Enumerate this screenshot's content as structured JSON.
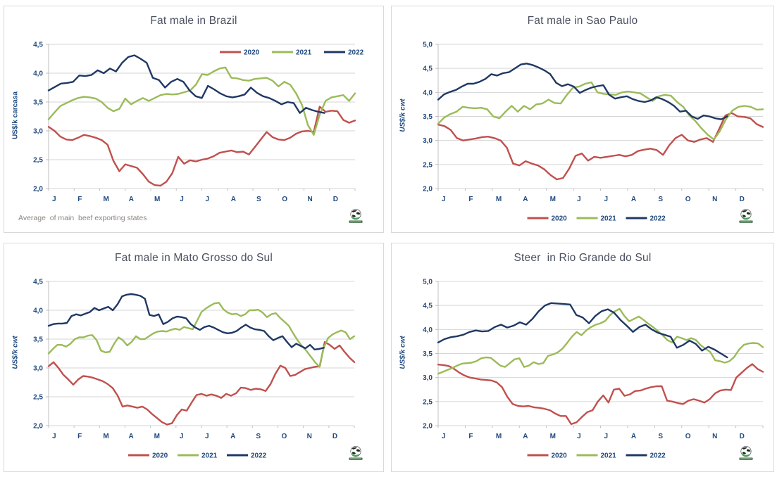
{
  "colors": {
    "red": "#c0504d",
    "green": "#9bbb59",
    "navy": "#1f3864",
    "gridline": "#d6d6d6",
    "axis_line": "#bfbfbf",
    "tick_text": "#1f497d",
    "title_text": "#4b5160",
    "footnote_text": "#8c867c",
    "panel_border": "#d9d9d9",
    "logo_green": "#3c9447",
    "logo_dark": "#1d2b20"
  },
  "months": [
    "J",
    "F",
    "M",
    "A",
    "M",
    "J",
    "J",
    "A",
    "S",
    "O",
    "N",
    "D"
  ],
  "legend_labels": [
    "2020",
    "2021",
    "2022"
  ],
  "logo_name": "world-beef-globe-logo",
  "chart_data": [
    {
      "type": "line",
      "title": "Fat male in Brazil",
      "ylabel": "US$/k carcasa",
      "ylim": [
        2.0,
        4.5
      ],
      "ytick_labels": [
        "4,5",
        "4,0",
        "3,5",
        "3,0",
        "2,5",
        "2,0"
      ],
      "x_categories": [
        "J",
        "F",
        "M",
        "A",
        "M",
        "J",
        "J",
        "A",
        "S",
        "O",
        "N",
        "D"
      ],
      "grid": "horizontal",
      "legend_position": "inset-top-right",
      "footnote": "Average  of main  beef exporting states",
      "series": [
        {
          "name": "2020",
          "color_key": "red",
          "end_fraction": 1.0,
          "values": [
            3.07,
            3.0,
            2.9,
            2.85,
            2.84,
            2.88,
            2.93,
            2.91,
            2.88,
            2.84,
            2.76,
            2.48,
            2.3,
            2.42,
            2.39,
            2.36,
            2.25,
            2.12,
            2.06,
            2.05,
            2.12,
            2.27,
            2.55,
            2.43,
            2.49,
            2.47,
            2.5,
            2.52,
            2.56,
            2.62,
            2.64,
            2.66,
            2.63,
            2.64,
            2.59,
            2.72,
            2.85,
            2.98,
            2.89,
            2.85,
            2.84,
            2.88,
            2.95,
            2.99,
            3.0,
            2.98,
            3.42,
            3.33,
            3.35,
            3.34,
            3.19,
            3.14,
            3.18
          ]
        },
        {
          "name": "2021",
          "color_key": "green",
          "end_fraction": 1.0,
          "values": [
            3.2,
            3.32,
            3.43,
            3.48,
            3.53,
            3.57,
            3.59,
            3.58,
            3.56,
            3.5,
            3.4,
            3.34,
            3.38,
            3.56,
            3.46,
            3.52,
            3.57,
            3.52,
            3.57,
            3.62,
            3.64,
            3.63,
            3.64,
            3.67,
            3.7,
            3.8,
            3.98,
            3.97,
            4.03,
            4.08,
            4.1,
            3.92,
            3.91,
            3.88,
            3.87,
            3.9,
            3.91,
            3.92,
            3.87,
            3.77,
            3.85,
            3.8,
            3.65,
            3.45,
            3.1,
            2.93,
            3.28,
            3.52,
            3.58,
            3.6,
            3.62,
            3.52,
            3.65
          ]
        },
        {
          "name": "2022",
          "color_key": "navy",
          "end_fraction": 0.9,
          "values": [
            3.7,
            3.76,
            3.82,
            3.83,
            3.85,
            3.96,
            3.95,
            3.97,
            4.05,
            4.0,
            4.08,
            4.03,
            4.18,
            4.28,
            4.31,
            4.25,
            4.18,
            3.92,
            3.88,
            3.75,
            3.85,
            3.9,
            3.85,
            3.7,
            3.6,
            3.57,
            3.78,
            3.72,
            3.65,
            3.6,
            3.58,
            3.6,
            3.63,
            3.75,
            3.66,
            3.6,
            3.57,
            3.52,
            3.46,
            3.5,
            3.48,
            3.31,
            3.4,
            3.36,
            3.33,
            3.31
          ]
        }
      ]
    },
    {
      "type": "line",
      "title": "Fat male in Sao Paulo",
      "ylabel": "US$/k cwt",
      "ylim": [
        2.0,
        5.0
      ],
      "ytick_labels": [
        "5,0",
        "4,5",
        "4,0",
        "3,5",
        "3,0",
        "2,5",
        "2,0"
      ],
      "x_categories": [
        "J",
        "F",
        "M",
        "A",
        "M",
        "J",
        "J",
        "A",
        "S",
        "O",
        "N",
        "D"
      ],
      "grid": "horizontal",
      "legend_position": "bottom",
      "series": [
        {
          "name": "2020",
          "color_key": "red",
          "end_fraction": 1.0,
          "values": [
            3.33,
            3.3,
            3.22,
            3.05,
            3.0,
            3.02,
            3.04,
            3.07,
            3.08,
            3.05,
            3.0,
            2.85,
            2.52,
            2.48,
            2.57,
            2.52,
            2.48,
            2.4,
            2.28,
            2.19,
            2.22,
            2.42,
            2.68,
            2.73,
            2.58,
            2.66,
            2.64,
            2.66,
            2.68,
            2.7,
            2.67,
            2.7,
            2.78,
            2.81,
            2.83,
            2.8,
            2.7,
            2.9,
            3.05,
            3.12,
            3.0,
            2.97,
            3.02,
            3.05,
            2.97,
            3.24,
            3.52,
            3.57,
            3.5,
            3.49,
            3.46,
            3.34,
            3.28
          ]
        },
        {
          "name": "2021",
          "color_key": "green",
          "end_fraction": 1.0,
          "values": [
            3.35,
            3.48,
            3.55,
            3.6,
            3.7,
            3.68,
            3.67,
            3.68,
            3.65,
            3.5,
            3.46,
            3.6,
            3.72,
            3.6,
            3.72,
            3.65,
            3.75,
            3.77,
            3.85,
            3.78,
            3.77,
            3.95,
            4.1,
            4.12,
            4.18,
            4.21,
            4.0,
            3.97,
            3.96,
            3.95,
            4.0,
            4.02,
            4.0,
            3.98,
            3.9,
            3.82,
            3.92,
            3.95,
            3.93,
            3.8,
            3.7,
            3.52,
            3.4,
            3.25,
            3.12,
            3.02,
            3.2,
            3.45,
            3.62,
            3.7,
            3.72,
            3.7,
            3.64,
            3.65
          ]
        },
        {
          "name": "2022",
          "color_key": "navy",
          "end_fraction": 0.89,
          "values": [
            3.85,
            3.96,
            4.01,
            4.05,
            4.12,
            4.18,
            4.18,
            4.22,
            4.28,
            4.38,
            4.35,
            4.4,
            4.42,
            4.5,
            4.58,
            4.6,
            4.57,
            4.52,
            4.46,
            4.38,
            4.2,
            4.13,
            4.17,
            4.12,
            3.99,
            4.05,
            4.1,
            4.13,
            4.15,
            3.95,
            3.87,
            3.9,
            3.92,
            3.86,
            3.82,
            3.8,
            3.83,
            3.9,
            3.86,
            3.8,
            3.72,
            3.6,
            3.62,
            3.5,
            3.45,
            3.52,
            3.5,
            3.46,
            3.44,
            3.5
          ]
        }
      ]
    },
    {
      "type": "line",
      "title": "Fat male in Mato Grosso do Sul",
      "ylabel": "US$/k cwt",
      "ylim": [
        2.0,
        4.5
      ],
      "ytick_labels": [
        "4,5",
        "4,0",
        "3,5",
        "3,0",
        "2,5",
        "2,0"
      ],
      "x_categories": [
        "J",
        "F",
        "M",
        "A",
        "M",
        "J",
        "J",
        "A",
        "S",
        "O",
        "N",
        "D"
      ],
      "grid": "horizontal",
      "legend_position": "bottom",
      "series": [
        {
          "name": "2020",
          "color_key": "red",
          "end_fraction": 1.0,
          "values": [
            3.03,
            3.1,
            3.0,
            2.88,
            2.8,
            2.71,
            2.8,
            2.86,
            2.85,
            2.83,
            2.8,
            2.77,
            2.72,
            2.65,
            2.52,
            2.33,
            2.35,
            2.33,
            2.31,
            2.33,
            2.28,
            2.2,
            2.13,
            2.06,
            2.02,
            2.04,
            2.18,
            2.28,
            2.26,
            2.4,
            2.53,
            2.55,
            2.52,
            2.54,
            2.52,
            2.48,
            2.55,
            2.52,
            2.56,
            2.66,
            2.65,
            2.62,
            2.64,
            2.63,
            2.6,
            2.72,
            2.9,
            3.04,
            3.0,
            2.86,
            2.88,
            2.93,
            2.98,
            3.0,
            3.02,
            3.03,
            3.45,
            3.4,
            3.33,
            3.39,
            3.28,
            3.18,
            3.1
          ]
        },
        {
          "name": "2021",
          "color_key": "green",
          "end_fraction": 1.0,
          "values": [
            3.25,
            3.33,
            3.4,
            3.4,
            3.37,
            3.42,
            3.5,
            3.53,
            3.53,
            3.56,
            3.57,
            3.48,
            3.3,
            3.27,
            3.28,
            3.42,
            3.53,
            3.48,
            3.39,
            3.45,
            3.55,
            3.5,
            3.5,
            3.55,
            3.6,
            3.63,
            3.64,
            3.63,
            3.66,
            3.68,
            3.66,
            3.71,
            3.69,
            3.67,
            3.82,
            3.97,
            4.03,
            4.08,
            4.12,
            4.13,
            4.02,
            3.96,
            3.93,
            3.94,
            3.9,
            3.93,
            4.0,
            4.0,
            4.01,
            3.96,
            3.88,
            3.93,
            3.95,
            3.87,
            3.8,
            3.73,
            3.6,
            3.48,
            3.38,
            3.3,
            3.2,
            3.1,
            3.02,
            3.35,
            3.52,
            3.58,
            3.62,
            3.65,
            3.62,
            3.5,
            3.55
          ]
        },
        {
          "name": "2022",
          "color_key": "navy",
          "end_fraction": 0.9,
          "values": [
            3.73,
            3.76,
            3.77,
            3.77,
            3.78,
            3.9,
            3.93,
            3.91,
            3.94,
            3.97,
            4.04,
            4.0,
            4.03,
            4.06,
            4.0,
            4.1,
            4.24,
            4.27,
            4.28,
            4.27,
            4.25,
            4.2,
            3.92,
            3.9,
            3.93,
            3.76,
            3.8,
            3.86,
            3.89,
            3.88,
            3.86,
            3.76,
            3.7,
            3.66,
            3.71,
            3.73,
            3.7,
            3.66,
            3.62,
            3.6,
            3.61,
            3.64,
            3.7,
            3.75,
            3.7,
            3.67,
            3.66,
            3.64,
            3.55,
            3.48,
            3.52,
            3.55,
            3.45,
            3.36,
            3.42,
            3.38,
            3.34,
            3.4,
            3.32,
            3.33,
            3.35
          ]
        }
      ]
    },
    {
      "type": "line",
      "title": "Steer  in Rio Grande do Sul",
      "ylabel": "US$/k cwt",
      "ylim": [
        2.0,
        5.0
      ],
      "ytick_labels": [
        "5,0",
        "4,5",
        "4,0",
        "3,5",
        "3,0",
        "2,5",
        "2,0"
      ],
      "x_categories": [
        "J",
        "F",
        "M",
        "A",
        "M",
        "J",
        "J",
        "A",
        "S",
        "O",
        "N",
        "D"
      ],
      "grid": "horizontal",
      "legend_position": "bottom",
      "series": [
        {
          "name": "2020",
          "color_key": "red",
          "end_fraction": 1.0,
          "values": [
            3.27,
            3.26,
            3.24,
            3.18,
            3.1,
            3.04,
            3.0,
            2.98,
            2.96,
            2.95,
            2.94,
            2.9,
            2.8,
            2.6,
            2.45,
            2.41,
            2.4,
            2.41,
            2.38,
            2.37,
            2.35,
            2.32,
            2.25,
            2.2,
            2.2,
            2.03,
            2.07,
            2.18,
            2.28,
            2.32,
            2.5,
            2.63,
            2.48,
            2.75,
            2.77,
            2.62,
            2.65,
            2.72,
            2.73,
            2.77,
            2.8,
            2.82,
            2.82,
            2.52,
            2.5,
            2.47,
            2.45,
            2.52,
            2.55,
            2.52,
            2.48,
            2.55,
            2.67,
            2.73,
            2.75,
            2.74,
            3.0,
            3.1,
            3.2,
            3.28,
            3.18,
            3.12
          ]
        },
        {
          "name": "2021",
          "color_key": "green",
          "end_fraction": 1.0,
          "values": [
            3.08,
            3.12,
            3.16,
            3.2,
            3.25,
            3.29,
            3.3,
            3.31,
            3.34,
            3.4,
            3.42,
            3.41,
            3.33,
            3.25,
            3.22,
            3.3,
            3.38,
            3.4,
            3.22,
            3.25,
            3.32,
            3.28,
            3.3,
            3.45,
            3.48,
            3.52,
            3.6,
            3.72,
            3.85,
            3.95,
            3.88,
            3.98,
            4.05,
            4.1,
            4.13,
            4.18,
            4.3,
            4.38,
            4.43,
            4.28,
            4.17,
            4.22,
            4.27,
            4.2,
            4.12,
            4.05,
            3.97,
            3.88,
            3.78,
            3.73,
            3.85,
            3.82,
            3.78,
            3.82,
            3.78,
            3.67,
            3.6,
            3.53,
            3.36,
            3.34,
            3.31,
            3.34,
            3.43,
            3.58,
            3.68,
            3.71,
            3.72,
            3.71,
            3.63
          ]
        },
        {
          "name": "2022",
          "color_key": "navy",
          "end_fraction": 0.89,
          "values": [
            3.73,
            3.8,
            3.84,
            3.86,
            3.89,
            3.95,
            3.98,
            3.96,
            3.97,
            4.05,
            4.1,
            4.04,
            4.08,
            4.15,
            4.1,
            4.22,
            4.38,
            4.5,
            4.55,
            4.54,
            4.53,
            4.52,
            4.3,
            4.25,
            4.13,
            4.28,
            4.38,
            4.42,
            4.35,
            4.2,
            4.08,
            3.95,
            4.05,
            4.1,
            4.0,
            3.93,
            3.89,
            3.85,
            3.62,
            3.68,
            3.77,
            3.7,
            3.56,
            3.64,
            3.58,
            3.5,
            3.42
          ]
        }
      ]
    }
  ]
}
